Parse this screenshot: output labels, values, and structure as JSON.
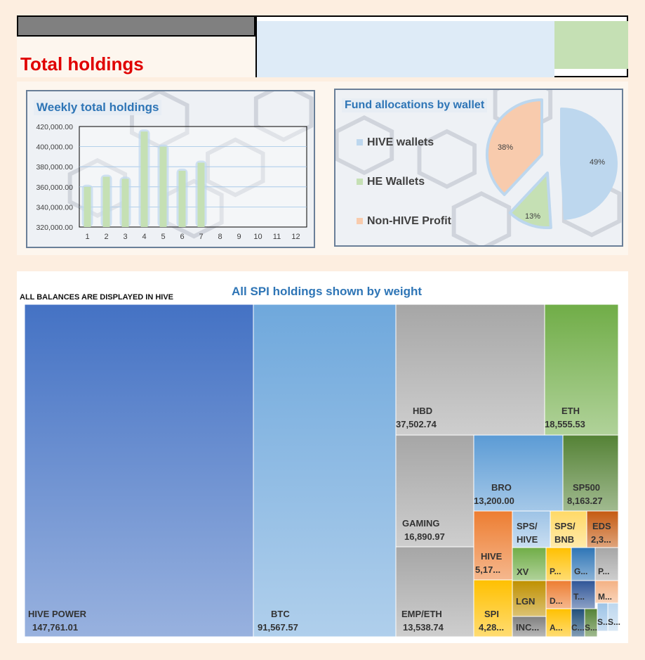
{
  "page": {
    "title": "Total holdings"
  },
  "chart_data": [
    {
      "type": "bar",
      "title": "Weekly total holdings",
      "categories": [
        "1",
        "2",
        "3",
        "4",
        "5",
        "6",
        "7",
        "8",
        "9",
        "10",
        "11",
        "12"
      ],
      "values": [
        360000,
        370000,
        368000,
        415000,
        400000,
        376000,
        384000,
        null,
        null,
        null,
        null,
        null
      ],
      "ylim": [
        320000,
        420000
      ],
      "yticks": [
        "420,000.00",
        "400,000.00",
        "380,000.00",
        "360,000.00",
        "340,000.00",
        "320,000.00"
      ],
      "ytick_values": [
        420000,
        400000,
        380000,
        360000,
        340000,
        320000
      ]
    },
    {
      "type": "pie",
      "title": "Fund allocations by wallet",
      "legend": [
        "HIVE wallets",
        "HE Wallets",
        "Non-HIVE Profit"
      ],
      "values": [
        49,
        13,
        38
      ],
      "labels": [
        "49%",
        "13%",
        "38%"
      ],
      "colors": [
        "#bdd7ee",
        "#c5e0b4",
        "#f8cbad"
      ]
    },
    {
      "type": "treemap",
      "title": "All SPI holdings shown by weight",
      "note": "ALL BALANCES ARE DISPLAYED IN HIVE",
      "items": [
        {
          "name": "HIVE POWER",
          "value": "147,761.01",
          "color": "#4472c4"
        },
        {
          "name": "BTC",
          "value": "91,567.57",
          "color": "#6fa8dc"
        },
        {
          "name": "HBD",
          "value": "37,502.74",
          "color": "#a6a6a6"
        },
        {
          "name": "ETH",
          "value": "18,555.53",
          "color": "#70ad47"
        },
        {
          "name": "GAMING",
          "value": "16,890.97",
          "color": "#a6a6a6"
        },
        {
          "name": "EMP/ETH",
          "value": "13,538.74",
          "color": "#a6a6a6"
        },
        {
          "name": "BRO",
          "value": "13,200.00",
          "color": "#5b9bd5"
        },
        {
          "name": "SP500",
          "value": "8,163.27",
          "color": "#548235"
        },
        {
          "name": "HIVE",
          "value": "5,17...",
          "color": "#ed7d31"
        },
        {
          "name": "SPI",
          "value": "4,28...",
          "color": "#ffc000"
        },
        {
          "name": "SPS/ HIVE",
          "value": "",
          "color": "#9dc3e6"
        },
        {
          "name": "SPS/ BNB",
          "value": "",
          "color": "#ffd966"
        },
        {
          "name": "EDS",
          "value": "2,3...",
          "color": "#c55a11"
        },
        {
          "name": "XV",
          "value": "",
          "color": "#70ad47"
        },
        {
          "name": "P...",
          "value": "",
          "color": "#ffc000"
        },
        {
          "name": "G...",
          "value": "",
          "color": "#2e75b6"
        },
        {
          "name": "P...",
          "value": "",
          "color": "#a6a6a6"
        },
        {
          "name": "LGN",
          "value": "",
          "color": "#bf9000"
        },
        {
          "name": "D...",
          "value": "",
          "color": "#ed7d31"
        },
        {
          "name": "T...",
          "value": "",
          "color": "#2f5597"
        },
        {
          "name": "M...",
          "value": "",
          "color": "#f4b183"
        },
        {
          "name": "INC...",
          "value": "",
          "color": "#7f7f7f"
        },
        {
          "name": "A...",
          "value": "",
          "color": "#ffc000"
        },
        {
          "name": "C...",
          "value": "",
          "color": "#1f4e79"
        },
        {
          "name": "S...",
          "value": "",
          "color": "#548235"
        },
        {
          "name": "S...",
          "value": "",
          "color": "#9dc3e6"
        },
        {
          "name": "S...",
          "value": "",
          "color": "#bdd7ee"
        }
      ]
    }
  ]
}
